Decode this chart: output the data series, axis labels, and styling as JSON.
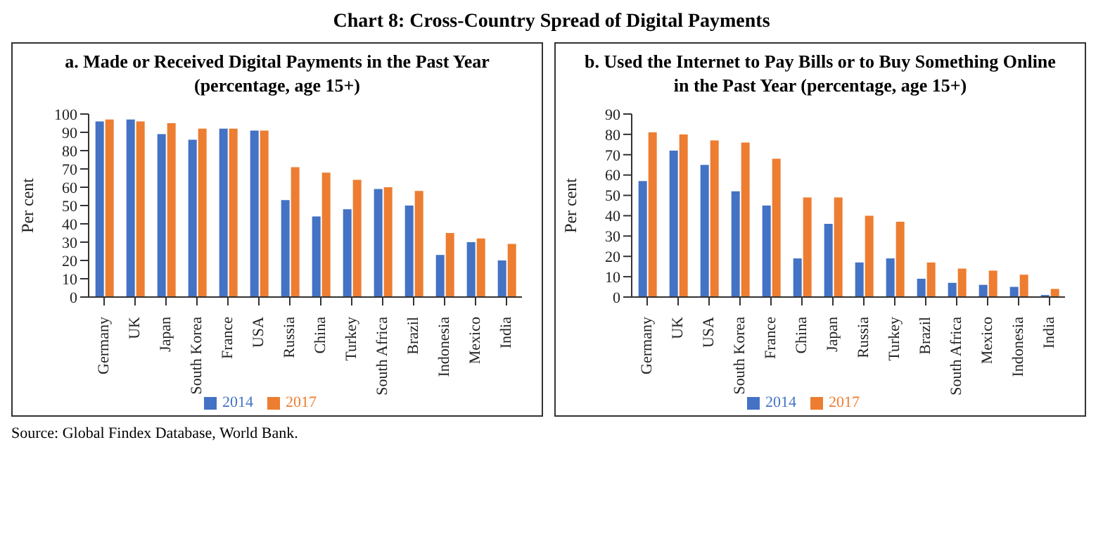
{
  "chart_data": [
    {
      "type": "bar",
      "title": "Chart 8: Cross-Country Spread of Digital Payments",
      "subtitle": "a. Made or Received Digital Payments in the Past Year (percentage, age 15+)",
      "ylabel": "Per cent",
      "categories": [
        "Germany",
        "UK",
        "Japan",
        "South Korea",
        "France",
        "USA",
        "Russia",
        "China",
        "Turkey",
        "South Africa",
        "Brazil",
        "Indonesia",
        "Mexico",
        "India"
      ],
      "series": [
        {
          "name": "2014",
          "color": "#4472c4",
          "values": [
            96,
            97,
            89,
            86,
            92,
            91,
            53,
            44,
            48,
            59,
            50,
            23,
            30,
            20
          ]
        },
        {
          "name": "2017",
          "color": "#ed7d31",
          "values": [
            97,
            96,
            95,
            92,
            92,
            91,
            71,
            68,
            64,
            60,
            58,
            35,
            32,
            29
          ]
        }
      ],
      "ylim": [
        0,
        100
      ],
      "yticks": [
        0,
        10,
        20,
        30,
        40,
        50,
        60,
        70,
        80,
        90,
        100
      ],
      "grid": false,
      "legend": "bottom",
      "annotations": [
        "Source: Global Findex Database, World Bank."
      ]
    },
    {
      "type": "bar",
      "subtitle": "b. Used the Internet to Pay Bills or to Buy Something Online in the Past Year (percentage, age 15+)",
      "ylabel": "Per cent",
      "categories": [
        "Germany",
        "UK",
        "USA",
        "South Korea",
        "France",
        "China",
        "Japan",
        "Russia",
        "Turkey",
        "Brazil",
        "South Africa",
        "Mexico",
        "Indonesia",
        "India"
      ],
      "series": [
        {
          "name": "2014",
          "color": "#4472c4",
          "values": [
            57,
            72,
            65,
            52,
            45,
            19,
            36,
            17,
            19,
            9,
            7,
            6,
            5,
            1
          ]
        },
        {
          "name": "2017",
          "color": "#ed7d31",
          "values": [
            81,
            80,
            77,
            76,
            68,
            49,
            49,
            40,
            37,
            17,
            14,
            13,
            11,
            4
          ]
        }
      ],
      "ylim": [
        0,
        90
      ],
      "yticks": [
        0,
        10,
        20,
        30,
        40,
        50,
        60,
        70,
        80,
        90
      ],
      "grid": false,
      "legend": "bottom"
    }
  ]
}
